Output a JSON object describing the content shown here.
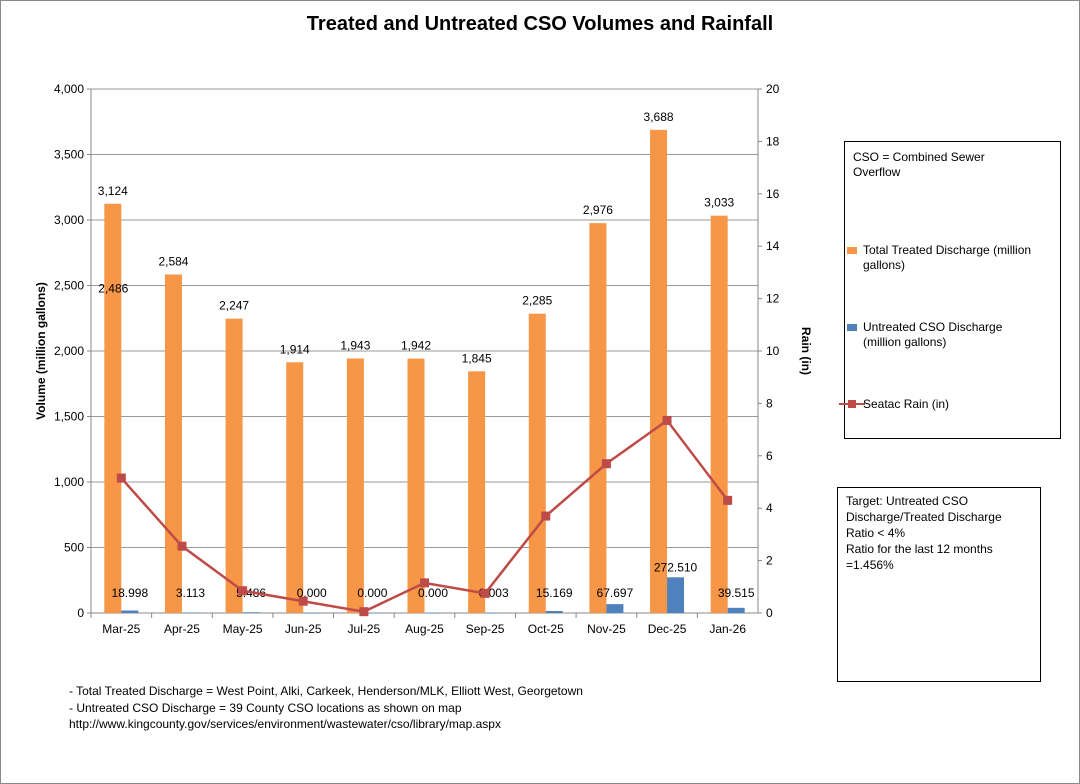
{
  "chart_data": {
    "type": "bar",
    "title": "Treated and Untreated CSO Volumes and Rainfall",
    "ylabel": "Volume (million gallons)",
    "y2label": "Rain (in)",
    "ylim": [
      0,
      4000
    ],
    "y2lim": [
      0,
      20
    ],
    "yticks": [
      "0",
      "500",
      "1,000",
      "1,500",
      "2,000",
      "2,500",
      "3,000",
      "3,500",
      "4,000"
    ],
    "y2ticks": [
      "0",
      "2",
      "4",
      "6",
      "8",
      "10",
      "12",
      "14",
      "16",
      "18",
      "20"
    ],
    "grid": true,
    "legend_position": "right",
    "categories": [
      "Mar-25",
      "Apr-25",
      "May-25",
      "Jun-25",
      "Jul-25",
      "Aug-25",
      "Sep-25",
      "Oct-25",
      "Nov-25",
      "Dec-25",
      "Jan-26"
    ],
    "series": [
      {
        "name": "Total Treated Discharge (million gallons)",
        "type": "bar",
        "axis": "left",
        "color": "#F79646",
        "values": [
          3124,
          2584,
          2247,
          1914,
          1943,
          1942,
          1845,
          2285,
          2976,
          3688,
          3033
        ],
        "labels": [
          "3,124",
          "2,584",
          "2,247",
          "1,914",
          "1,943",
          "1,942",
          "1,845",
          "2,285",
          "2,976",
          "3,688",
          "3,033"
        ]
      },
      {
        "name": "Untreated CSO Discharge (million gallons)",
        "type": "bar",
        "axis": "left",
        "color": "#4F81BD",
        "values": [
          18.998,
          3.113,
          5.486,
          0,
          0,
          0,
          0.003,
          15.169,
          67.697,
          272.51,
          39.515
        ],
        "labels": [
          "18.998",
          "3.113",
          "5.486",
          "0.000",
          "0.000",
          "0.000",
          "0.003",
          "15.169",
          "67.697",
          "272.510",
          "39.515"
        ]
      },
      {
        "name": "Seatac Rain (in)",
        "type": "line",
        "axis": "right",
        "color": "#BE4B48",
        "values": [
          5.15,
          2.55,
          0.85,
          0.45,
          0.05,
          1.15,
          0.75,
          3.7,
          5.7,
          7.35,
          4.3
        ]
      }
    ],
    "extra_label": "2,486"
  },
  "legend_note": [
    "CSO = Combined Sewer",
    "Overflow"
  ],
  "target_box": [
    "Target: Untreated CSO",
    "Discharge/Treated Discharge",
    "Ratio < 4%",
    "Ratio for the last 12 months",
    "=1.456%"
  ],
  "footnotes": [
    "- Total Treated Discharge = West Point, Alki, Carkeek, Henderson/MLK, Elliott West, Georgetown",
    "- Untreated CSO Discharge = 39 County CSO locations as shown on map",
    "http://www.kingcounty.gov/services/environment/wastewater/cso/library/map.aspx"
  ]
}
